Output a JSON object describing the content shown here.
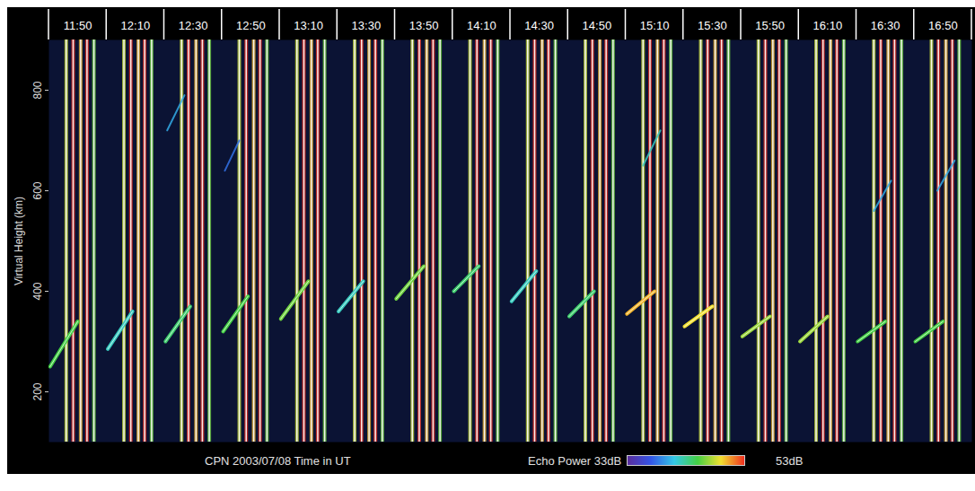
{
  "chart_data": {
    "type": "range_time_intensity",
    "caption": "CPN 2003/07/08 Time in UT",
    "y_label": "Virtual Height (km)",
    "xlim": [
      0,
      16
    ],
    "xticks": [
      {
        "value": 0.5,
        "label": "11:50"
      },
      {
        "value": 1.5,
        "label": "12:10"
      },
      {
        "value": 2.5,
        "label": "12:30"
      },
      {
        "value": 3.5,
        "label": "12:50"
      },
      {
        "value": 4.5,
        "label": "13:10"
      },
      {
        "value": 5.5,
        "label": "13:30"
      },
      {
        "value": 6.5,
        "label": "13:50"
      },
      {
        "value": 7.5,
        "label": "14:10"
      },
      {
        "value": 8.5,
        "label": "14:30"
      },
      {
        "value": 9.5,
        "label": "14:50"
      },
      {
        "value": 10.5,
        "label": "15:10"
      },
      {
        "value": 11.5,
        "label": "15:30"
      },
      {
        "value": 12.5,
        "label": "15:50"
      },
      {
        "value": 13.5,
        "label": "16:10"
      },
      {
        "value": 14.5,
        "label": "16:30"
      },
      {
        "value": 15.5,
        "label": "16:50"
      }
    ],
    "ylim": [
      100,
      900
    ],
    "yticks": [
      200,
      400,
      600,
      800
    ],
    "traces": [
      {
        "panel": 0,
        "x": [
          0.02,
          0.5
        ],
        "values": [
          250,
          340
        ],
        "power": 45
      },
      {
        "panel": 1,
        "x": [
          0.02,
          0.45
        ],
        "values": [
          285,
          360
        ],
        "power": 42
      },
      {
        "panel": 2,
        "x": [
          0.02,
          0.45
        ],
        "values": [
          300,
          370
        ],
        "power": 44
      },
      {
        "panel": 3,
        "x": [
          0.02,
          0.45
        ],
        "values": [
          320,
          390
        ],
        "power": 45
      },
      {
        "panel": 4,
        "x": [
          0.02,
          0.5
        ],
        "values": [
          345,
          420
        ],
        "power": 46
      },
      {
        "panel": 5,
        "x": [
          0.02,
          0.45
        ],
        "values": [
          360,
          420
        ],
        "power": 42
      },
      {
        "panel": 6,
        "x": [
          0.02,
          0.5
        ],
        "values": [
          385,
          450
        ],
        "power": 46
      },
      {
        "panel": 7,
        "x": [
          0.02,
          0.45
        ],
        "values": [
          400,
          450
        ],
        "power": 44
      },
      {
        "panel": 8,
        "x": [
          0.02,
          0.45
        ],
        "values": [
          380,
          440
        ],
        "power": 42
      },
      {
        "panel": 9,
        "x": [
          0.02,
          0.45
        ],
        "values": [
          350,
          400
        ],
        "power": 44
      },
      {
        "panel": 10,
        "x": [
          0.02,
          0.5
        ],
        "values": [
          355,
          400
        ],
        "power": 50
      },
      {
        "panel": 11,
        "x": [
          0.02,
          0.5
        ],
        "values": [
          330,
          370
        ],
        "power": 49
      },
      {
        "panel": 12,
        "x": [
          0.02,
          0.5
        ],
        "values": [
          310,
          350
        ],
        "power": 47
      },
      {
        "panel": 13,
        "x": [
          0.02,
          0.5
        ],
        "values": [
          300,
          350
        ],
        "power": 47
      },
      {
        "panel": 14,
        "x": [
          0.02,
          0.5
        ],
        "values": [
          300,
          340
        ],
        "power": 45
      },
      {
        "panel": 15,
        "x": [
          0.02,
          0.5
        ],
        "values": [
          300,
          340
        ],
        "power": 45
      }
    ],
    "upper_traces": [
      {
        "panel": 2,
        "x": [
          0.05,
          0.35
        ],
        "values": [
          720,
          790
        ],
        "power": 40
      },
      {
        "panel": 3,
        "x": [
          0.05,
          0.3
        ],
        "values": [
          640,
          700
        ],
        "power": 38
      },
      {
        "panel": 10,
        "x": [
          0.3,
          0.6
        ],
        "values": [
          650,
          720
        ],
        "power": 42
      },
      {
        "panel": 14,
        "x": [
          0.3,
          0.6
        ],
        "values": [
          560,
          620
        ],
        "power": 40
      },
      {
        "panel": 15,
        "x": [
          0.4,
          0.7
        ],
        "values": [
          600,
          660
        ],
        "power": 40
      }
    ],
    "stripes": {
      "offsets": [
        0.3,
        0.42,
        0.55,
        0.66,
        0.78
      ],
      "power": [
        48,
        53,
        50,
        53,
        46
      ]
    },
    "colorbar": {
      "label": "Echo Power",
      "range": [
        33,
        53
      ],
      "ticks": [
        {
          "value": 33,
          "label": "33dB"
        },
        {
          "value": 53,
          "label": "53dB"
        }
      ],
      "colors": [
        "#5a2d9c",
        "#3355e6",
        "#33c8e6",
        "#44d044",
        "#f2e030",
        "#f03020"
      ]
    }
  }
}
